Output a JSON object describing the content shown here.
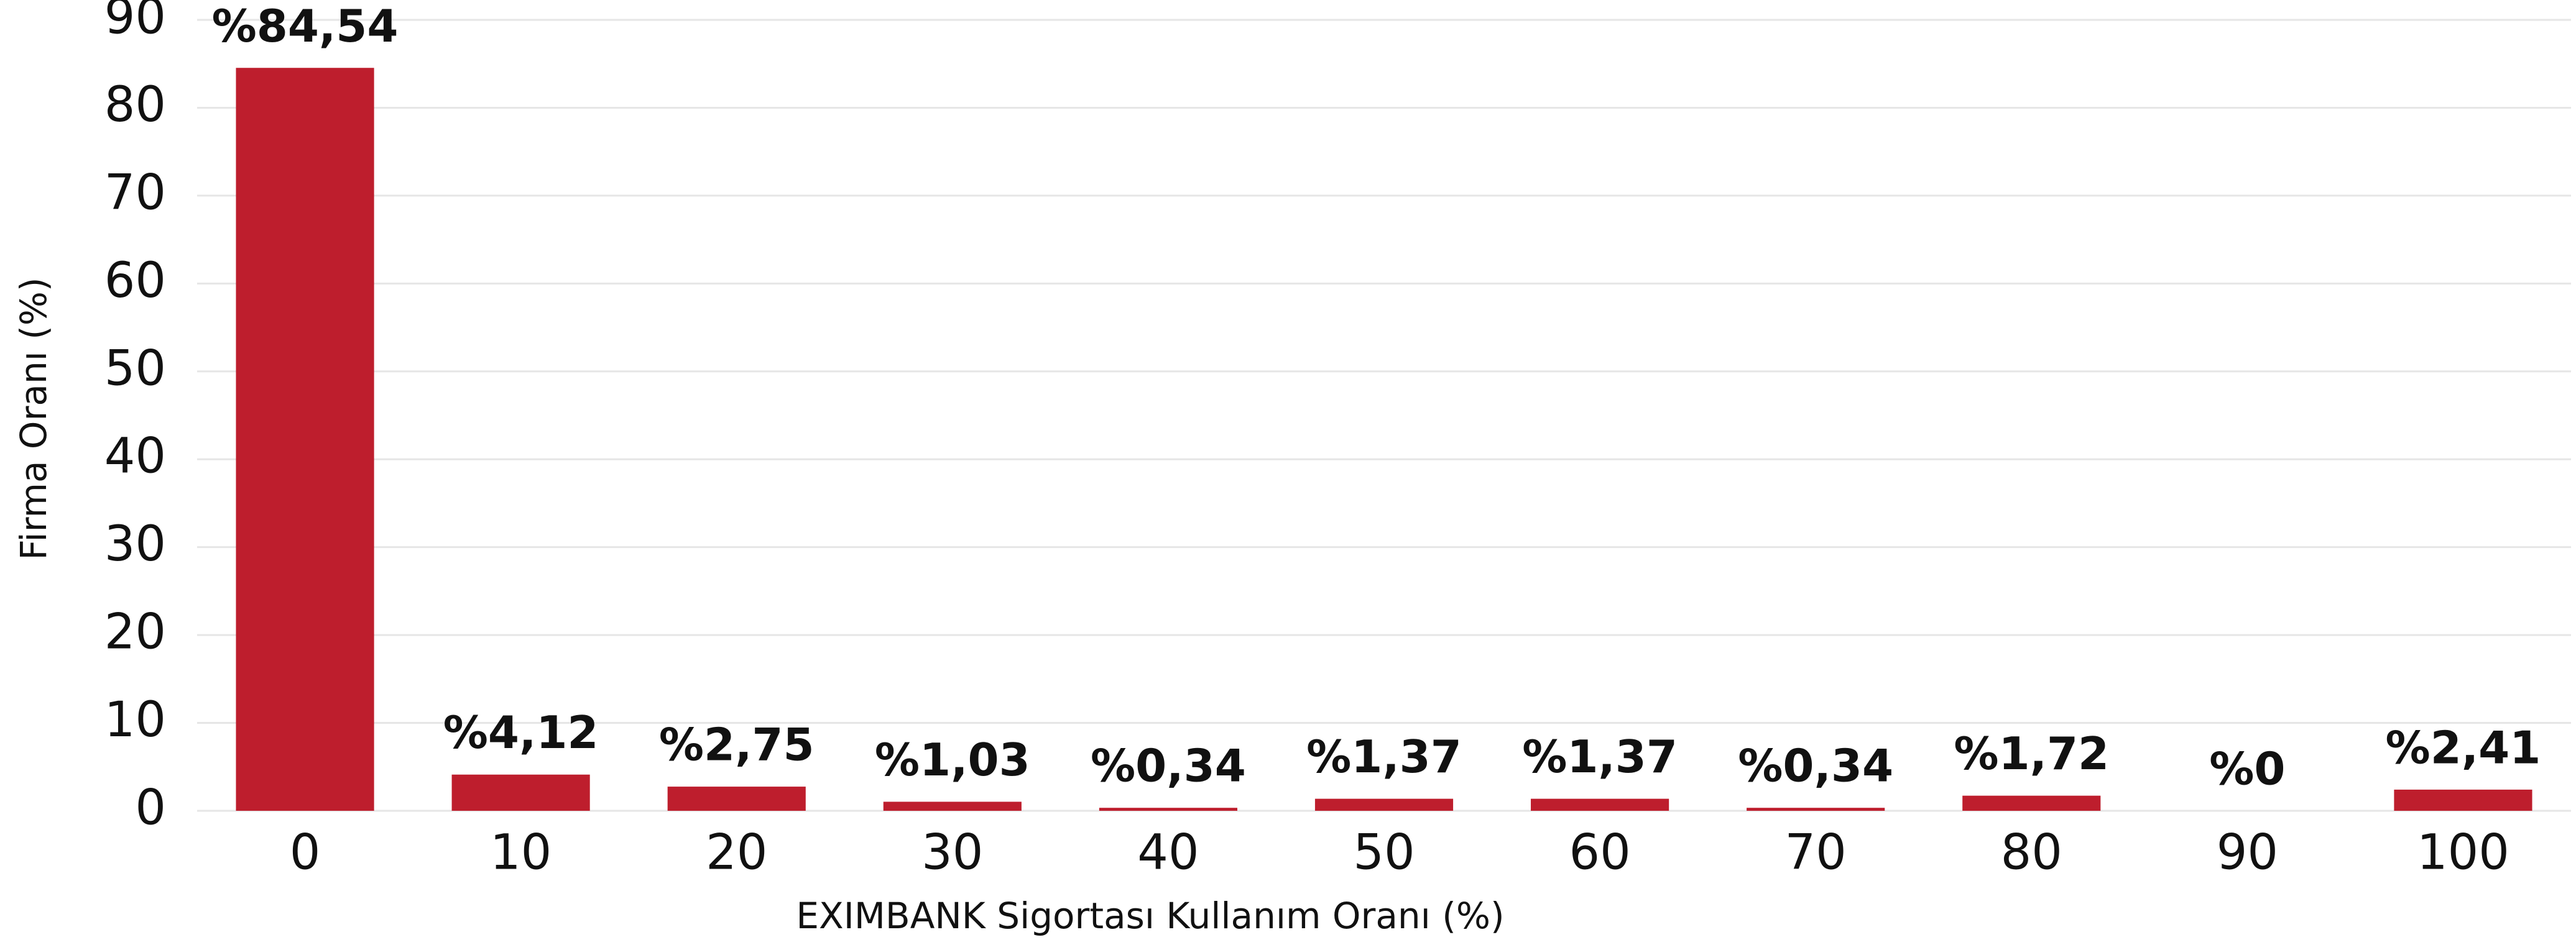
{
  "chart_data": {
    "type": "bar",
    "x_label": "EXIMBANK Sigortası Kullanım Oranı (%)",
    "y_label": "Firma Oranı (%)",
    "categories": [
      "0",
      "10",
      "20",
      "30",
      "40",
      "50",
      "60",
      "70",
      "80",
      "90",
      "100"
    ],
    "values": [
      84.54,
      4.12,
      2.75,
      1.03,
      0.34,
      1.37,
      1.37,
      0.34,
      1.72,
      0,
      2.41
    ],
    "value_labels": [
      "%84,54",
      "%4,12",
      "%2,75",
      "%1,03",
      "%0,34",
      "%1,37",
      "%1,37",
      "%0,34",
      "%1,72",
      "%0",
      "%2,41"
    ],
    "color": "#be1e2d",
    "ylim": [
      0,
      90
    ],
    "yticks": [
      0,
      10,
      20,
      30,
      40,
      50,
      60,
      70,
      80,
      90
    ],
    "grid": true
  }
}
